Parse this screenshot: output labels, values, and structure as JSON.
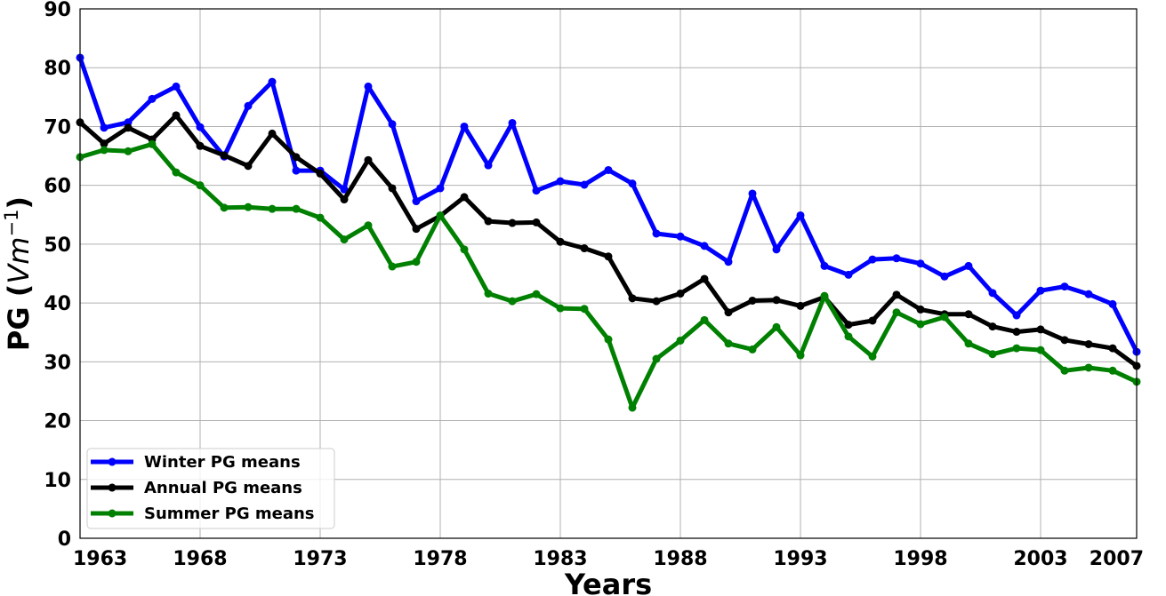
{
  "chart_data": {
    "type": "line",
    "xlabel": "Years",
    "ylabel_text": "PG (",
    "ylabel_math": "Vm",
    "ylabel_exp": "−1",
    "ylabel_close": ")",
    "xlim": [
      1963,
      2007
    ],
    "ylim": [
      0,
      90
    ],
    "xticks": [
      1963,
      1968,
      1973,
      1978,
      1983,
      1988,
      1993,
      1998,
      2003,
      2007
    ],
    "yticks": [
      0,
      10,
      20,
      30,
      40,
      50,
      60,
      70,
      80,
      90
    ],
    "grid": true,
    "legend_position": "bottom-left",
    "x": [
      1963,
      1964,
      1965,
      1966,
      1967,
      1968,
      1969,
      1970,
      1971,
      1972,
      1973,
      1974,
      1975,
      1976,
      1977,
      1978,
      1979,
      1980,
      1981,
      1982,
      1983,
      1984,
      1985,
      1986,
      1987,
      1988,
      1989,
      1990,
      1991,
      1992,
      1993,
      1994,
      1995,
      1996,
      1997,
      1998,
      1999,
      2000,
      2001,
      2002,
      2003,
      2004,
      2005,
      2006,
      2007
    ],
    "series": [
      {
        "name": "Winter PG means",
        "color": "#0000ff",
        "values": [
          81.7,
          69.8,
          70.7,
          74.7,
          76.8,
          69.9,
          64.9,
          73.5,
          77.6,
          62.5,
          62.5,
          59.3,
          76.8,
          70.4,
          57.3,
          59.5,
          70.0,
          63.4,
          70.6,
          59.1,
          60.7,
          60.1,
          62.6,
          60.3,
          51.8,
          51.3,
          49.7,
          47.0,
          58.6,
          49.1,
          54.9,
          46.3,
          44.8,
          47.4,
          47.6,
          46.7,
          44.5,
          46.3,
          41.7,
          37.9,
          42.1,
          42.8,
          41.5,
          39.8,
          31.7
        ]
      },
      {
        "name": "Annual PG means",
        "color": "#000000",
        "values": [
          70.7,
          67.1,
          69.8,
          67.8,
          71.9,
          66.7,
          65.1,
          63.3,
          68.8,
          64.8,
          62.0,
          57.6,
          64.3,
          59.5,
          52.6,
          54.8,
          58.0,
          53.9,
          53.6,
          53.7,
          50.4,
          49.3,
          47.9,
          40.8,
          40.3,
          41.6,
          44.1,
          38.4,
          40.4,
          40.5,
          39.5,
          41.0,
          36.3,
          37.0,
          41.4,
          38.9,
          38.1,
          38.1,
          36.0,
          35.1,
          35.5,
          33.7,
          33.0,
          32.3,
          29.3
        ]
      },
      {
        "name": "Summer PG means",
        "color": "#008000",
        "values": [
          64.8,
          66.0,
          65.8,
          67.0,
          62.2,
          60.0,
          56.2,
          56.3,
          56.0,
          56.0,
          54.5,
          50.8,
          53.2,
          46.2,
          47.0,
          54.9,
          49.1,
          41.6,
          40.3,
          41.5,
          39.1,
          39.0,
          33.8,
          22.2,
          30.5,
          33.6,
          37.1,
          33.1,
          32.1,
          35.9,
          31.1,
          41.2,
          34.3,
          30.9,
          38.4,
          36.4,
          37.6,
          33.1,
          31.3,
          32.3,
          32.0,
          28.5,
          29.0,
          28.5,
          26.6
        ]
      }
    ]
  }
}
